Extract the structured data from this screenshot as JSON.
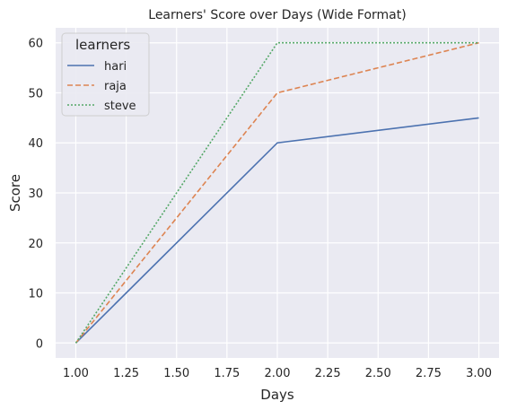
{
  "chart_data": {
    "type": "line",
    "title": "Learners' Score over Days (Wide Format)",
    "xlabel": "Days",
    "ylabel": "Score",
    "xlim": [
      0.9,
      3.1
    ],
    "ylim": [
      -3,
      63
    ],
    "x_ticks": [
      1.0,
      1.25,
      1.5,
      1.75,
      2.0,
      2.25,
      2.5,
      2.75,
      3.0
    ],
    "x_tick_labels": [
      "1.00",
      "1.25",
      "1.50",
      "1.75",
      "2.00",
      "2.25",
      "2.50",
      "2.75",
      "3.00"
    ],
    "y_ticks": [
      0,
      10,
      20,
      30,
      40,
      50,
      60
    ],
    "y_tick_labels": [
      "0",
      "10",
      "20",
      "30",
      "40",
      "50",
      "60"
    ],
    "grid": true,
    "legend": {
      "title": "learners",
      "position": "top-left"
    },
    "x": [
      1,
      2,
      3
    ],
    "series": [
      {
        "name": "hari",
        "values": [
          0,
          40,
          45
        ],
        "color": "#4c72b0",
        "style": "solid"
      },
      {
        "name": "raja",
        "values": [
          0,
          50,
          60
        ],
        "color": "#dd8452",
        "style": "dashed"
      },
      {
        "name": "steve",
        "values": [
          0,
          60,
          60
        ],
        "color": "#55a868",
        "style": "dotted"
      }
    ],
    "colors": {
      "plot_background": "#eaeaf2",
      "grid": "#ffffff",
      "text": "#262626"
    }
  }
}
